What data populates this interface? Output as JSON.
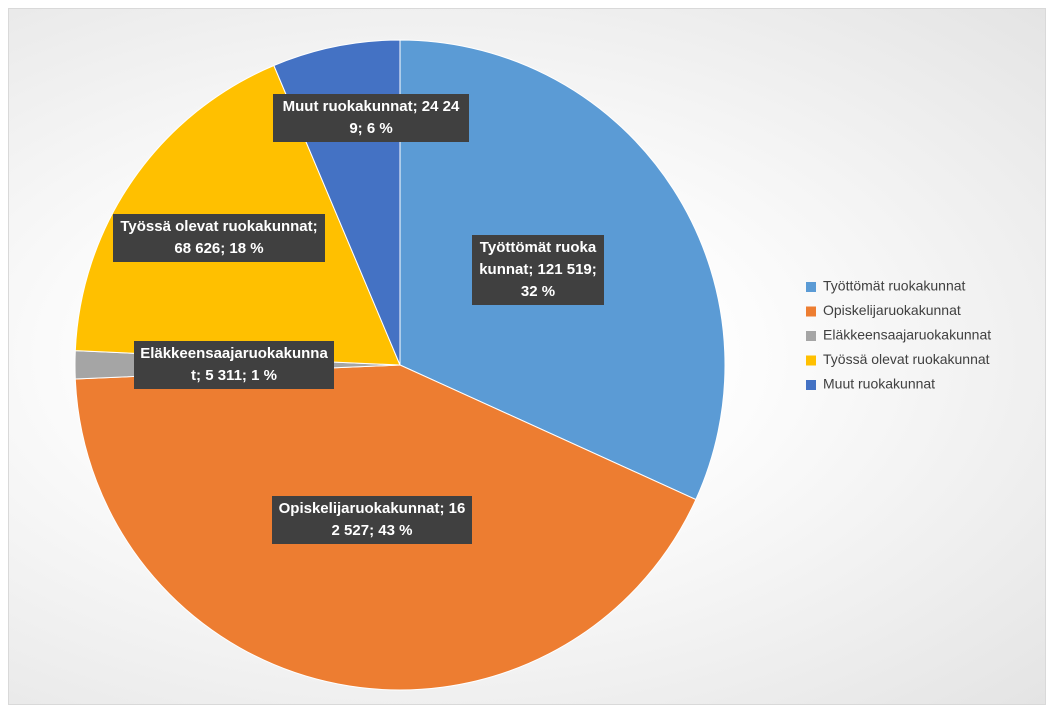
{
  "chart_data": {
    "type": "pie",
    "categories": [
      "Työttömät ruokakunnat",
      "Opiskelijaruokakunnat",
      "Eläkkeensaajaruokakunnat",
      "Työssä olevat ruokakunnat",
      "Muut ruokakunnat"
    ],
    "values": [
      121519,
      162527,
      5311,
      68626,
      24249
    ],
    "value_labels": [
      "Työttömät ruokakunnat; 121 519; 32 %",
      "Opiskelijaruokakunnat; 162 527; 43 %",
      "Eläkkeensaajaruokakunnat; 5 311; 1 %",
      "Työssä olevat ruokakunnat; 68 626; 18 %",
      "Muut ruokakunnat; 24 249; 6 %"
    ],
    "colors": [
      "#5b9bd5",
      "#ed7d31",
      "#a5a5a5",
      "#ffc000",
      "#4472c4"
    ],
    "legend": "right"
  }
}
